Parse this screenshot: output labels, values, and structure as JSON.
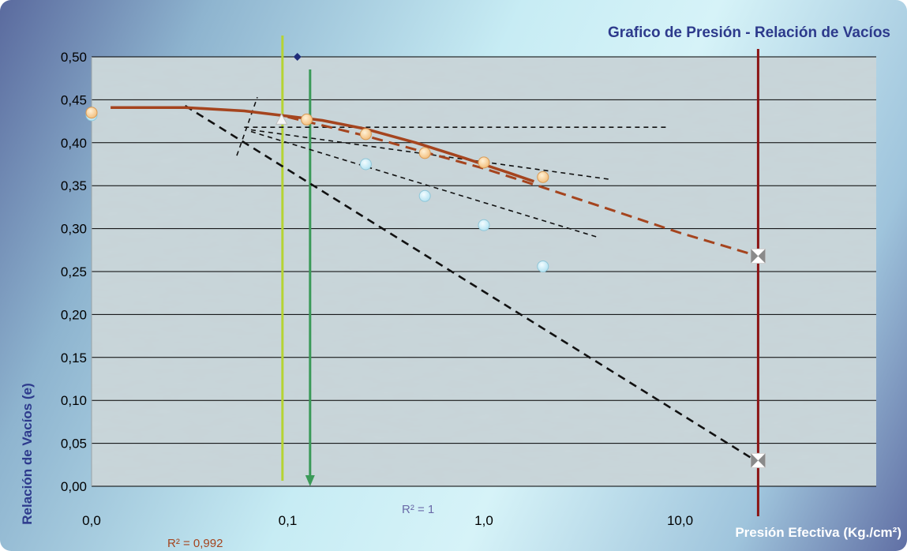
{
  "chart_data": {
    "type": "scatter",
    "title": "Grafico de Presión - Relación de Vacíos",
    "xlabel": "Presión Efectiva (Kg./cm²)",
    "ylabel": "Relación de Vacíos (e)",
    "x_scale": "log",
    "x_range": [
      0.01,
      100
    ],
    "ylim": [
      0,
      0.5
    ],
    "x_ticks": [
      {
        "value": 0.01,
        "label": "0,0"
      },
      {
        "value": 0.1,
        "label": "0,1"
      },
      {
        "value": 1,
        "label": "1,0"
      },
      {
        "value": 10,
        "label": "10,0"
      }
    ],
    "y_ticks": [
      {
        "value": 0.0,
        "label": "0,00"
      },
      {
        "value": 0.05,
        "label": "0,05"
      },
      {
        "value": 0.1,
        "label": "0,10"
      },
      {
        "value": 0.15,
        "label": "0,15"
      },
      {
        "value": 0.2,
        "label": "0,20"
      },
      {
        "value": 0.25,
        "label": "0,25"
      },
      {
        "value": 0.3,
        "label": "0,30"
      },
      {
        "value": 0.35,
        "label": "0,35"
      },
      {
        "value": 0.4,
        "label": "0,40"
      },
      {
        "value": 0.45,
        "label": "0,45"
      },
      {
        "value": 0.5,
        "label": "0,50"
      }
    ],
    "grid": true,
    "annotations": [
      "R² = 1",
      "R² = 0,992"
    ],
    "colors": {
      "plot_bg": "#c9d6da",
      "grid": "#000000",
      "orange_marker": "#f7c98f",
      "blue_marker": "#c9ecf6",
      "curve": "#a5441e",
      "yellow_line": "#b6d334",
      "green_line": "#3a9a58",
      "red_line": "#8b1414",
      "dashed": "#111111"
    },
    "series": [
      {
        "kind": "orange-markers",
        "points": [
          [
            0.01,
            0.435
          ],
          [
            0.125,
            0.427
          ],
          [
            0.25,
            0.41
          ],
          [
            0.5,
            0.388
          ],
          [
            1.0,
            0.377
          ],
          [
            2.0,
            0.36
          ]
        ]
      },
      {
        "kind": "blue-markers",
        "points": [
          [
            0.01,
            0.432
          ],
          [
            0.25,
            0.375
          ],
          [
            0.5,
            0.338
          ],
          [
            1.0,
            0.304
          ],
          [
            2.0,
            0.256
          ]
        ]
      },
      {
        "kind": "fit-curve-solid",
        "points": [
          [
            0.0125,
            0.441
          ],
          [
            0.03,
            0.441
          ],
          [
            0.06,
            0.437
          ],
          [
            0.1,
            0.431
          ],
          [
            0.15,
            0.426
          ],
          [
            0.25,
            0.416
          ],
          [
            0.45,
            0.4
          ],
          [
            0.8,
            0.382
          ],
          [
            1.3,
            0.366
          ],
          [
            1.8,
            0.355
          ]
        ]
      },
      {
        "kind": "fit-curve-dashed",
        "points": [
          [
            0.1,
            0.43
          ],
          [
            0.25,
            0.408
          ],
          [
            0.5,
            0.389
          ],
          [
            1.0,
            0.37
          ],
          [
            2.0,
            0.348
          ],
          [
            5.0,
            0.318
          ],
          [
            10.0,
            0.295
          ],
          [
            25.0,
            0.268
          ]
        ]
      },
      {
        "kind": "dashed-lines",
        "lines": [
          [
            [
              0.06,
              0.418
            ],
            [
              8.5,
              0.418
            ]
          ],
          [
            [
              0.065,
              0.415
            ],
            [
              4.5,
              0.357
            ]
          ],
          [
            [
              0.065,
              0.413
            ],
            [
              3.8,
              0.29
            ]
          ],
          [
            [
              0.03,
              0.443
            ],
            [
              25.0,
              0.028
            ]
          ],
          [
            [
              0.055,
              0.385
            ],
            [
              0.07,
              0.453
            ]
          ]
        ]
      },
      {
        "kind": "vertical-lines",
        "lines": [
          {
            "x": 0.094,
            "color": "yellow"
          },
          {
            "x": 0.13,
            "color": "green-arrow"
          },
          {
            "x": 25.0,
            "color": "red"
          }
        ]
      },
      {
        "kind": "special-markers",
        "points": [
          {
            "x": 0.112,
            "y": 0.5,
            "shape": "diamond"
          },
          {
            "x": 0.093,
            "y": 0.427,
            "shape": "triangle"
          },
          {
            "x": 25.0,
            "y": 0.268,
            "shape": "bowtie"
          },
          {
            "x": 25.0,
            "y": 0.03,
            "shape": "bowtie"
          }
        ]
      }
    ]
  }
}
